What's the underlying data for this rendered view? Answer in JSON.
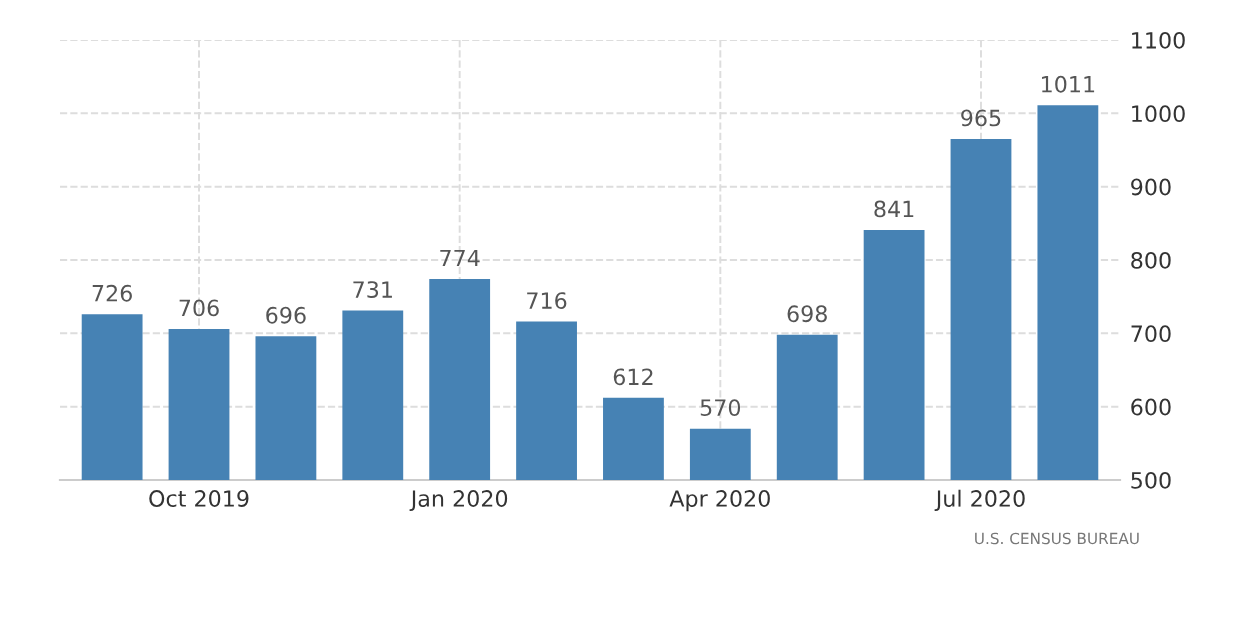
{
  "chart_data": {
    "type": "bar",
    "categories": [
      null,
      "Oct 2019",
      null,
      null,
      "Jan 2020",
      null,
      null,
      "Apr 2020",
      null,
      null,
      "Jul 2020",
      null
    ],
    "values": [
      726,
      706,
      696,
      731,
      774,
      716,
      612,
      570,
      698,
      841,
      965,
      1011
    ],
    "color": "#4682b4",
    "ylim": [
      500,
      1100
    ],
    "yticks": [
      500,
      600,
      700,
      800,
      900,
      1000,
      1100
    ],
    "grid": true,
    "data_labels": true,
    "annotations": [
      "U.S. CENSUS BUREAU"
    ]
  }
}
